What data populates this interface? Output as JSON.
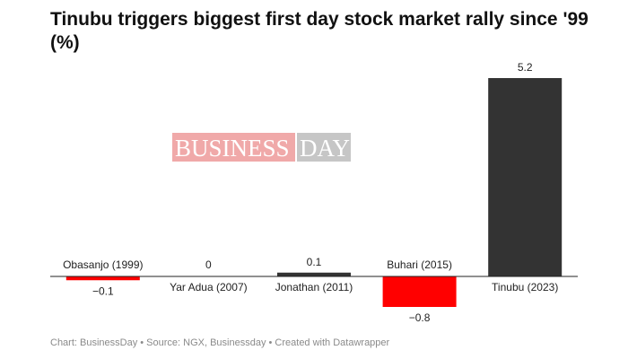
{
  "title": "Tinubu triggers biggest first day stock market rally since '99 (%)",
  "watermark": {
    "left": "BUSINESS",
    "right": "DAY"
  },
  "footer": "Chart: BusinessDay • Source: NGX, Businessday • Created with Datawrapper",
  "colors": {
    "positive": "#333333",
    "negative": "#ff0000",
    "baseline": "#222222"
  },
  "chart_data": {
    "type": "bar",
    "title": "Tinubu triggers biggest first day stock market rally since '99 (%)",
    "categories": [
      "Obasanjo (1999)",
      "Yar Adua (2007)",
      "Jonathan (2011)",
      "Buhari (2015)",
      "Tinubu (2023)"
    ],
    "values": [
      -0.1,
      0,
      0.1,
      -0.8,
      5.2
    ],
    "value_labels": [
      "−0.1",
      "0",
      "0.1",
      "−0.8",
      "5.2"
    ],
    "xlabel": "",
    "ylabel": "",
    "ylim": [
      -0.8,
      5.2
    ],
    "grid": false,
    "legend": "none"
  }
}
